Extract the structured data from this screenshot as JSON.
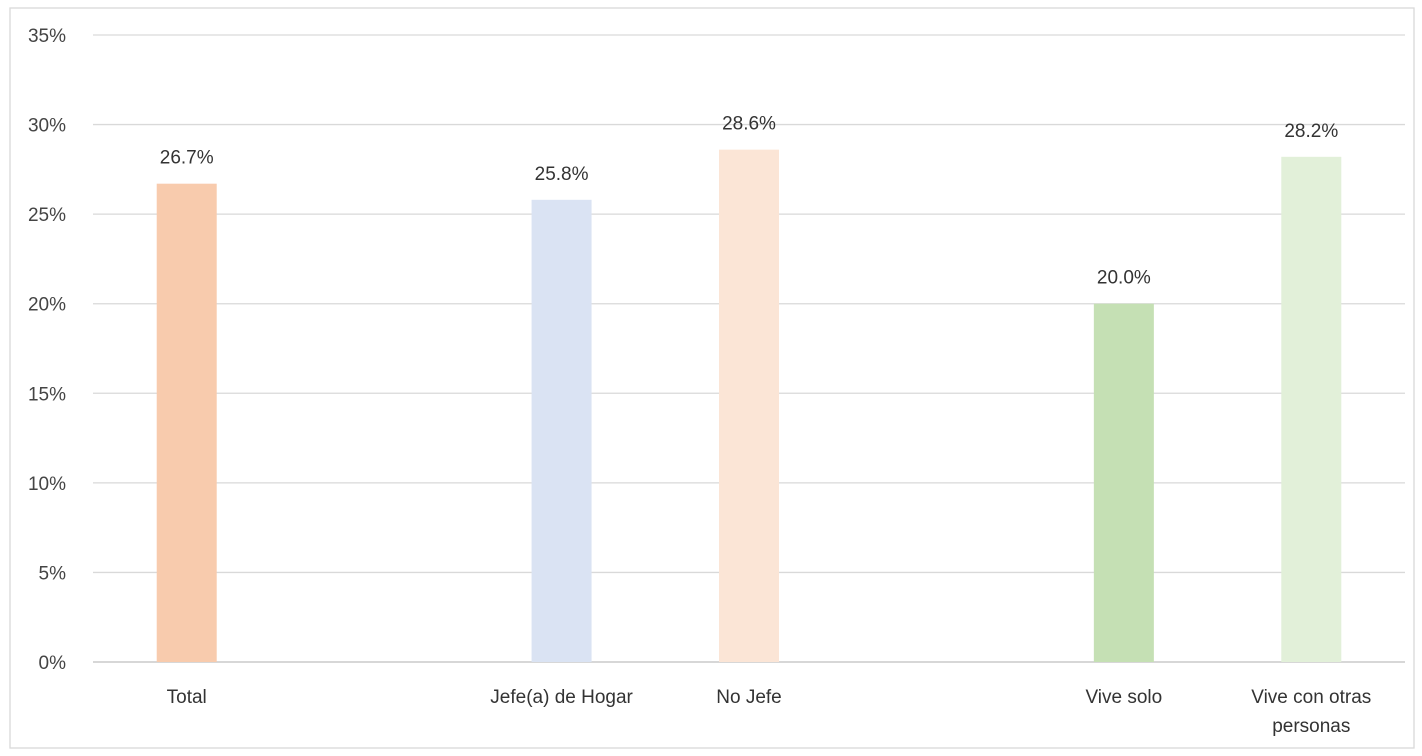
{
  "chart_data": {
    "type": "bar",
    "categories": [
      [
        "Total"
      ],
      [],
      [
        "Jefe(a) de Hogar"
      ],
      [
        "No Jefe"
      ],
      [],
      [
        "Vive solo"
      ],
      [
        "Vive con otras",
        "personas"
      ]
    ],
    "values": [
      26.7,
      null,
      25.8,
      28.6,
      null,
      20.0,
      28.2
    ],
    "data_labels": [
      "26.7%",
      "",
      "25.8%",
      "28.6%",
      "",
      "20.0%",
      "28.2%"
    ],
    "colors": [
      "#F8CBAD",
      null,
      "#DAE3F3",
      "#FBE5D6",
      null,
      "#C5E0B4",
      "#E2F0D9"
    ],
    "ylim": [
      0,
      35
    ],
    "y_ticks": [
      0,
      5,
      10,
      15,
      20,
      25,
      30,
      35
    ],
    "y_tick_labels": [
      "0%",
      "5%",
      "10%",
      "15%",
      "20%",
      "25%",
      "30%",
      "35%"
    ],
    "grid": true,
    "legend": "none"
  }
}
